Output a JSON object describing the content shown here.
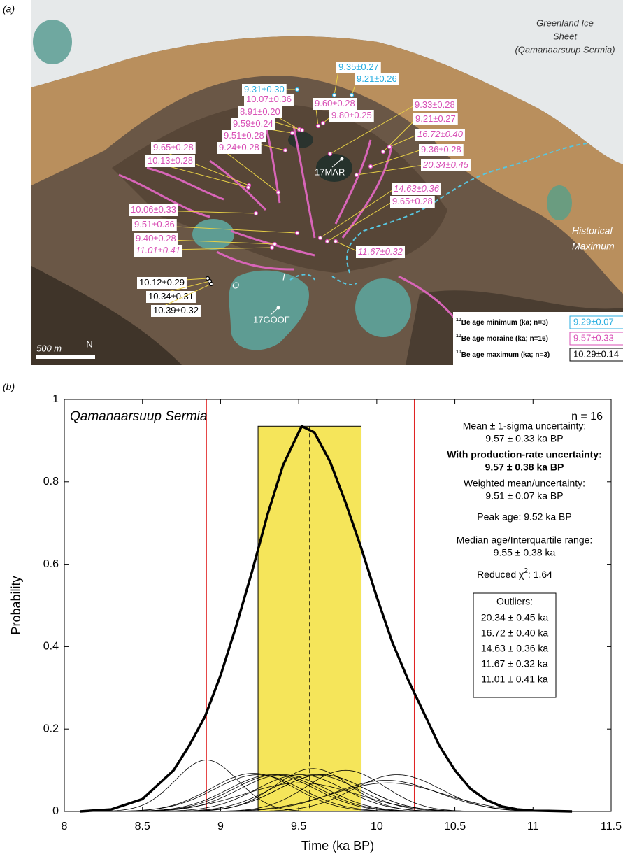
{
  "panel_a": {
    "label": "(a)",
    "minimum_ages": [
      "9.31±0.30",
      "9.35±0.27",
      "9.21±0.26"
    ],
    "moraine_ages": [
      "10.07±0.36",
      "8.91±0.20",
      "9.59±0.24",
      "9.51±0.28",
      "9.24±0.28",
      "9.65±0.28",
      "10.13±0.28",
      "10.06±0.33",
      "9.51±0.36",
      "9.40±0.28",
      "9.60±0.28",
      "9.80±0.25",
      "9.33±0.28",
      "9.21±0.27",
      "9.36±0.28",
      "9.65±0.28"
    ],
    "outlier_ages": [
      "16.72±0.40",
      "20.34±0.45",
      "14.63±0.36",
      "11.67±0.32",
      "11.01±0.41"
    ],
    "maximum_ages": [
      "10.12±0.29",
      "10.34±0.31",
      "10.39±0.32"
    ],
    "places": [
      "17MAR",
      "17GOOF",
      "O",
      "I"
    ],
    "ice_sheet": [
      "Greenland Ice",
      "Sheet",
      "(Qamanaarsuup Sermia)"
    ],
    "historical": [
      "Historical",
      "Maximum"
    ],
    "scale": "500 m",
    "north": "N",
    "legend": [
      {
        "sup": "10",
        "text": "Be age minimum (ka; n=3)",
        "value": "9.29±0.07"
      },
      {
        "sup": "10",
        "text": "Be age moraine (ka; n=16)",
        "value": "9.57±0.33"
      },
      {
        "sup": "10",
        "text": "Be age maximum (ka; n=3)",
        "value": "10.29±0.14"
      }
    ]
  },
  "chart_data": {
    "type": "line",
    "panel_label": "(b)",
    "title": "Qamanaarsuup Sermia",
    "count": "n = 16",
    "x_label": "Time (ka BP)",
    "y_label": "Probability",
    "xlim": [
      8,
      11.5
    ],
    "ylim": [
      0,
      1
    ],
    "xticks": [
      8,
      8.5,
      9,
      9.5,
      10,
      10.5,
      11,
      11.5
    ],
    "yticks": [
      0,
      0.2,
      0.4,
      0.6,
      0.8,
      1
    ],
    "x": [
      8.1,
      8.3,
      8.5,
      8.7,
      8.8,
      8.9,
      9.0,
      9.1,
      9.2,
      9.3,
      9.4,
      9.5,
      9.52,
      9.6,
      9.7,
      9.8,
      9.9,
      10.0,
      10.1,
      10.2,
      10.3,
      10.4,
      10.5,
      10.6,
      10.7,
      10.8,
      10.9,
      11.0,
      11.25
    ],
    "series": [
      {
        "color": "#000000",
        "values": [
          0,
          0.005,
          0.03,
          0.1,
          0.16,
          0.23,
          0.33,
          0.45,
          0.58,
          0.72,
          0.84,
          0.92,
          0.935,
          0.92,
          0.85,
          0.75,
          0.64,
          0.52,
          0.41,
          0.32,
          0.24,
          0.16,
          0.1,
          0.055,
          0.028,
          0.012,
          0.005,
          0.002,
          0
        ]
      }
    ],
    "components": [
      {
        "mean": 10.07,
        "sigma": 0.36
      },
      {
        "mean": 8.91,
        "sigma": 0.2
      },
      {
        "mean": 9.59,
        "sigma": 0.24
      },
      {
        "mean": 9.51,
        "sigma": 0.28
      },
      {
        "mean": 9.24,
        "sigma": 0.28
      },
      {
        "mean": 9.65,
        "sigma": 0.28
      },
      {
        "mean": 10.13,
        "sigma": 0.28
      },
      {
        "mean": 10.06,
        "sigma": 0.33
      },
      {
        "mean": 9.51,
        "sigma": 0.36
      },
      {
        "mean": 9.4,
        "sigma": 0.28
      },
      {
        "mean": 9.6,
        "sigma": 0.28
      },
      {
        "mean": 9.8,
        "sigma": 0.25
      },
      {
        "mean": 9.33,
        "sigma": 0.28
      },
      {
        "mean": 9.21,
        "sigma": 0.27
      },
      {
        "mean": 9.36,
        "sigma": 0.28
      },
      {
        "mean": 9.65,
        "sigma": 0.28
      }
    ],
    "band": [
      9.24,
      9.9
    ],
    "band_color": "#f5e55a",
    "mean_line": 9.57,
    "red_lines": [
      8.91,
      10.24
    ],
    "stats": [
      {
        "text": "Mean ± 1-sigma uncertainty:",
        "bold": false
      },
      {
        "text": "9.57 ± 0.33 ka BP",
        "bold": false
      },
      {
        "text": "With production-rate uncertainty:",
        "bold": true
      },
      {
        "text": "9.57 ± 0.38 ka BP",
        "bold": true
      },
      {
        "text": "Weighted mean/uncertainty:",
        "bold": false
      },
      {
        "text": "9.51 ± 0.07 ka BP",
        "bold": false
      },
      {
        "text": "Peak age: 9.52 ka BP",
        "bold": false
      },
      {
        "text": "Median age/Interquartile range:",
        "bold": false
      },
      {
        "text": "9.55 ± 0.38 ka",
        "bold": false
      }
    ],
    "chi": {
      "text": "Reduced χ",
      "sup": "2",
      "value": ": 1.64"
    },
    "outliers_title": "Outliers:",
    "outliers": [
      "20.34 ± 0.45 ka",
      "16.72 ± 0.40 ka",
      "14.63 ± 0.36 ka",
      "11.67 ± 0.32 ka",
      "11.01 ± 0.41 ka"
    ]
  }
}
